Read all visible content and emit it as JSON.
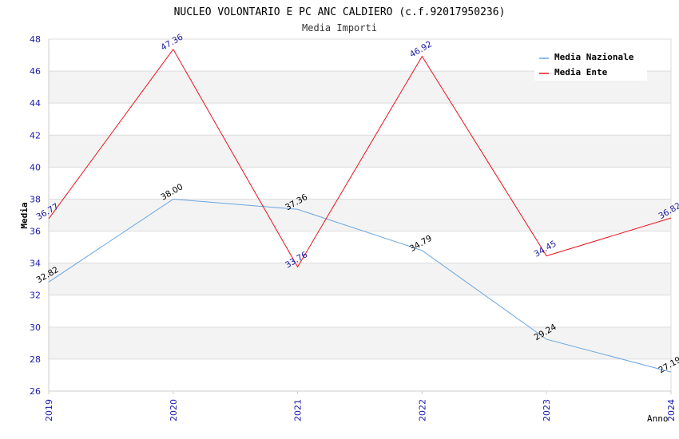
{
  "chart_data": {
    "type": "line",
    "title": "NUCLEO VOLONTARIO E PC ANC CALDIERO (c.f.92017950236)",
    "subtitle": "Media Importi",
    "xlabel": "Anno",
    "ylabel": "Media",
    "x": [
      "2019",
      "2020",
      "2021",
      "2022",
      "2023",
      "2024"
    ],
    "ylim": [
      26,
      48
    ],
    "yticks": [
      "26",
      "28",
      "30",
      "32",
      "34",
      "36",
      "38",
      "40",
      "42",
      "44",
      "46",
      "48"
    ],
    "grid": "horizontal alternating bands",
    "legend_position": "top-right",
    "series": [
      {
        "name": "Media Nazionale",
        "color": "#6aa6e0",
        "values": [
          32.82,
          38.0,
          37.36,
          34.79,
          29.24,
          27.19
        ],
        "labels": [
          "32.82",
          "38.00",
          "37.36",
          "34.79",
          "29.24",
          "27.19"
        ],
        "label_color": "#000000"
      },
      {
        "name": "Media Ente",
        "color": "#e8141c",
        "values": [
          36.77,
          47.36,
          33.76,
          46.92,
          34.45,
          36.82
        ],
        "labels": [
          "36.77",
          "47.36",
          "33.76",
          "46.92",
          "34.45",
          "36.82"
        ],
        "label_color": "#1a1aa0"
      }
    ]
  }
}
